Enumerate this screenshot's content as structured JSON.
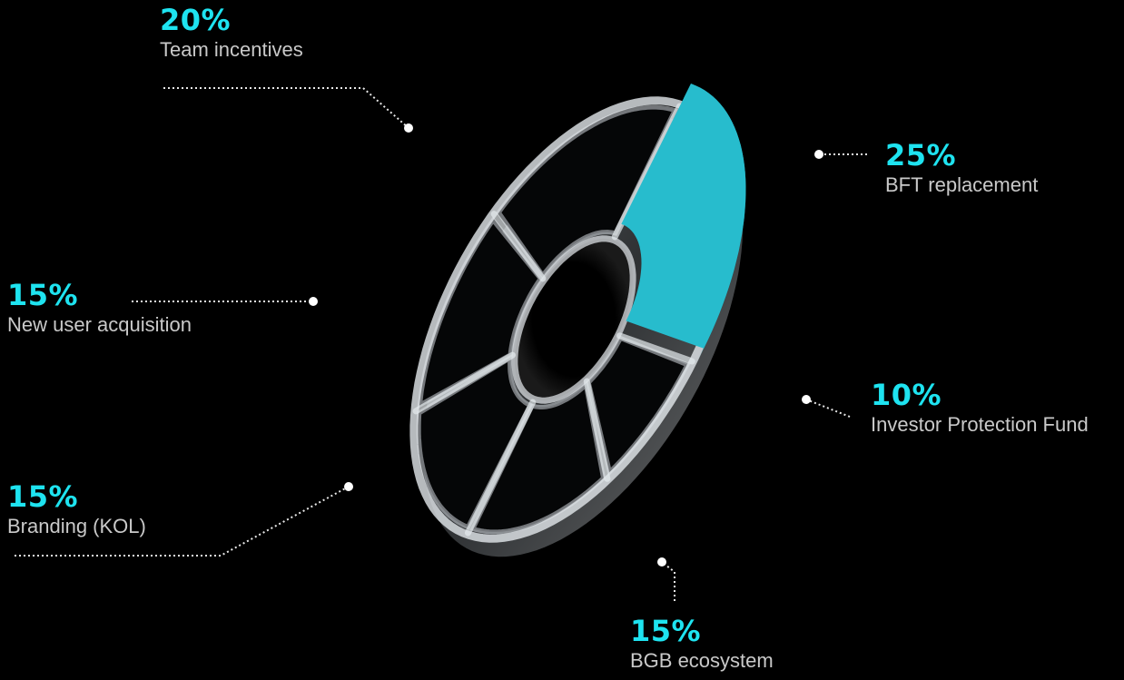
{
  "chart_data": {
    "type": "pie",
    "categories": [
      "BFT replacement",
      "Investor Protection Fund",
      "BGB ecosystem",
      "Branding (KOL)",
      "New user acquisition",
      "Team incentives"
    ],
    "values": [
      25,
      10,
      15,
      15,
      15,
      20
    ],
    "value_labels": [
      "25%",
      "10%",
      "15%",
      "15%",
      "15%",
      "20%"
    ],
    "highlighted_category": "BFT replacement",
    "style": "3D glass donut with one raised slice",
    "colors": {
      "highlight": "#27bccd",
      "label_value": "#1ee3f0",
      "label_text": "#c9c9c9",
      "background": "#000000",
      "glass": "#d6dbe0"
    }
  }
}
